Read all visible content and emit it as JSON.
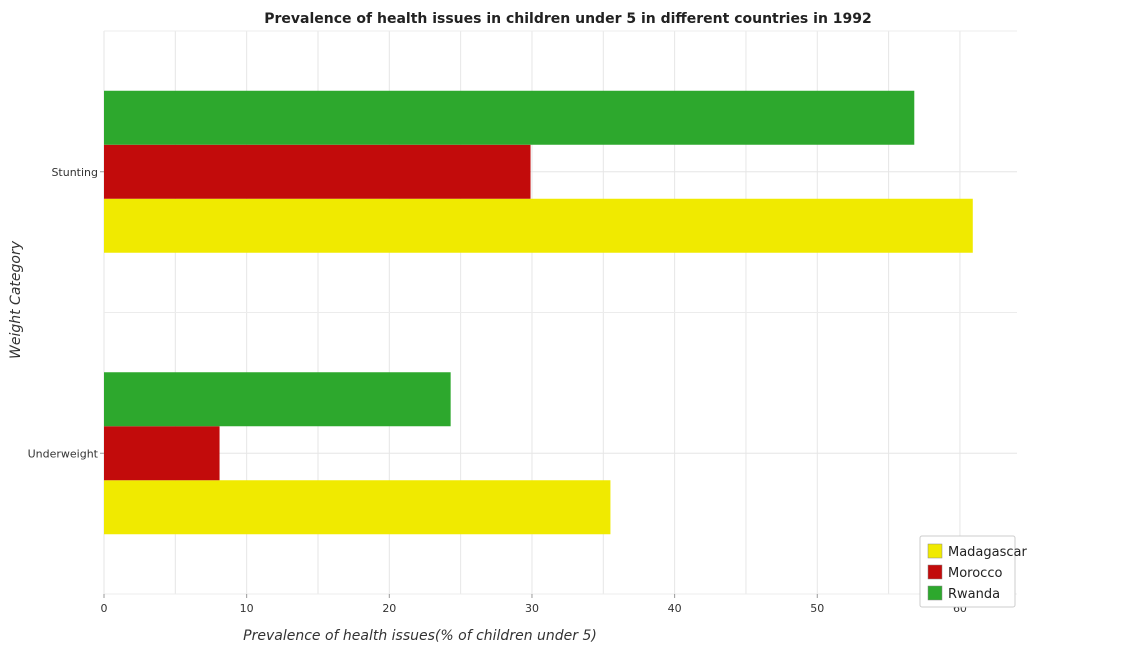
{
  "chart_data": {
    "type": "bar",
    "orientation": "horizontal",
    "title": "Prevalence of health issues in children under 5 in different countries in 1992",
    "xlabel": "Prevalence of health issues(% of children under 5)",
    "ylabel": "Weight Category",
    "categories": [
      "Stunting",
      "Underweight"
    ],
    "series": [
      {
        "name": "Madagascar",
        "color": "#f0ea00",
        "values": [
          60.9,
          35.5
        ]
      },
      {
        "name": "Morocco",
        "color": "#c20b0b",
        "values": [
          29.9,
          8.1
        ]
      },
      {
        "name": "Rwanda",
        "color": "#2da82d",
        "values": [
          56.8,
          24.3
        ]
      }
    ],
    "xlim": [
      0,
      64
    ],
    "xticks": [
      0,
      10,
      20,
      30,
      40,
      50,
      60
    ],
    "grid": true,
    "legend_position": "bottom-right"
  }
}
